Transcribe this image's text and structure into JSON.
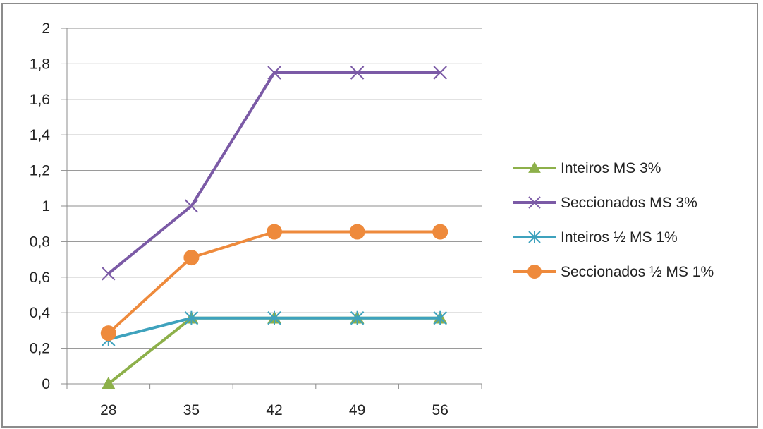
{
  "chart_data": {
    "type": "line",
    "x": [
      28,
      35,
      42,
      49,
      56
    ],
    "categories": [
      "28",
      "35",
      "42",
      "49",
      "56"
    ],
    "ylim": [
      0,
      2
    ],
    "yticks": [
      0,
      0.2,
      0.4,
      0.6,
      0.8,
      1,
      1.2,
      1.4,
      1.6,
      1.8,
      2
    ],
    "ytick_labels": [
      "0",
      "0,2",
      "0,4",
      "0,6",
      "0,8",
      "1",
      "1,2",
      "1,4",
      "1,6",
      "1,8",
      "2"
    ],
    "grid": "horizontal",
    "legend_position": "right",
    "series": [
      {
        "name": "Inteiros MS 3%",
        "values": [
          0,
          0.37,
          0.37,
          0.37,
          0.37
        ],
        "color": "#8db04a",
        "marker": "triangle"
      },
      {
        "name": "Seccionados MS 3%",
        "values": [
          0.62,
          1.0,
          1.75,
          1.75,
          1.75
        ],
        "color": "#7b5aa6",
        "marker": "x"
      },
      {
        "name": "Inteiros ½ MS 1%",
        "values": [
          0.25,
          0.37,
          0.37,
          0.37,
          0.37
        ],
        "color": "#3ea2bd",
        "marker": "star"
      },
      {
        "name": "Seccionados ½ MS 1%",
        "values": [
          0.285,
          0.71,
          0.855,
          0.855,
          0.855
        ],
        "color": "#ee8a3c",
        "marker": "circle"
      }
    ]
  }
}
